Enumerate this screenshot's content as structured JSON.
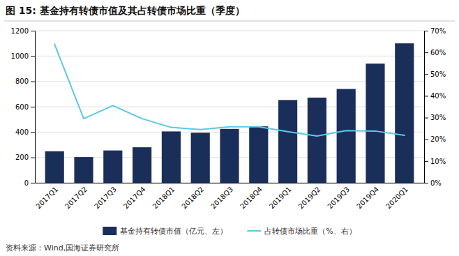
{
  "chart_data": {
    "type": "bar",
    "title": "图 15:  基金持有转债市值及其占转债市场比重（季度）",
    "source": "资料来源：Wind,国海证券研究所",
    "categories": [
      "2017Q1",
      "2017Q2",
      "2017Q3",
      "2017Q4",
      "2018Q1",
      "2018Q2",
      "2018Q3",
      "2018Q4",
      "2019Q1",
      "2019Q2",
      "2019Q3",
      "2019Q4",
      "2020Q1"
    ],
    "series": [
      {
        "name": "基金持有转债市值（亿元、左）",
        "type": "bar",
        "color": "#1a2e5a",
        "values": [
          248,
          203,
          255,
          280,
          405,
          395,
          425,
          445,
          653,
          672,
          740,
          940,
          1100
        ]
      },
      {
        "name": "占转债市场比重（%、右）",
        "type": "line",
        "axis": "y2",
        "color": "#5bc8e8",
        "values": [
          0.638,
          0.295,
          0.355,
          0.295,
          0.255,
          0.245,
          0.258,
          0.258,
          0.235,
          0.215,
          0.24,
          0.238,
          0.218
        ]
      }
    ],
    "ylim": [
      0,
      1200
    ],
    "yticks": [
      0,
      200,
      400,
      600,
      800,
      1000,
      1200
    ],
    "y2lim": [
      0,
      0.7
    ],
    "y2ticks": [
      {
        "value": 0.0,
        "label": "0%"
      },
      {
        "value": 0.1,
        "label": "10%"
      },
      {
        "value": 0.2,
        "label": "20%"
      },
      {
        "value": 0.3,
        "label": "30%"
      },
      {
        "value": 0.4,
        "label": "40%"
      },
      {
        "value": 0.5,
        "label": "50%"
      },
      {
        "value": 0.6,
        "label": "60%"
      },
      {
        "value": 0.7,
        "label": "70%"
      }
    ],
    "grid": true,
    "legend": "bottom"
  }
}
